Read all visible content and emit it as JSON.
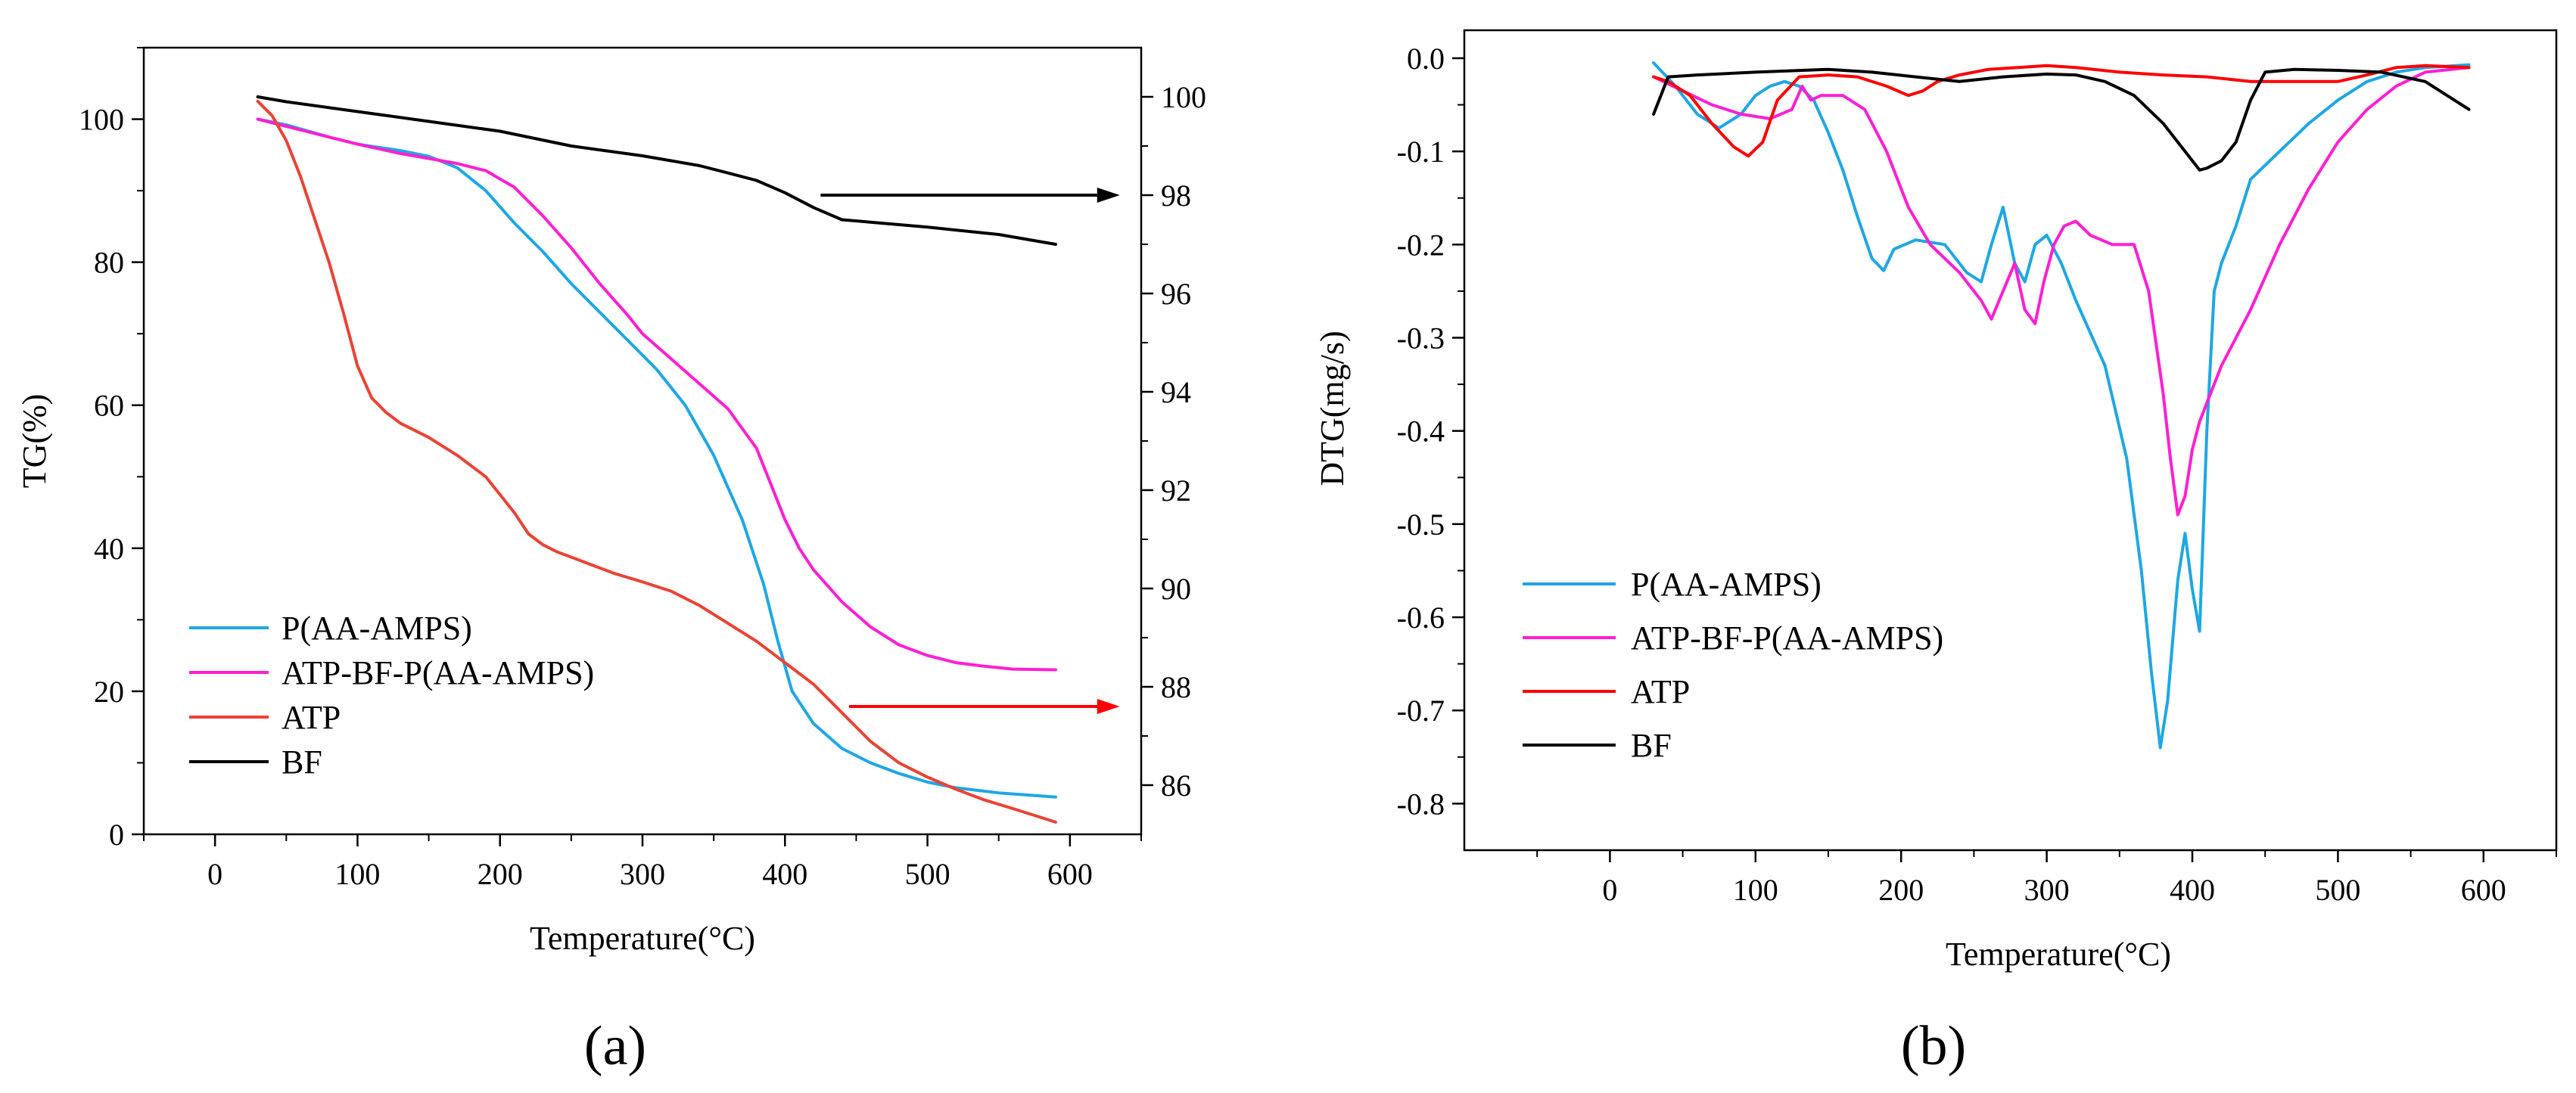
{
  "chart_data": [
    {
      "type": "line",
      "panel_label": "(a)",
      "xlabel": "Temperature(°C)",
      "ylabel": "TG(%)",
      "y2label": "",
      "xlim": [
        -50,
        650
      ],
      "ylim": [
        0,
        110
      ],
      "y2lim": [
        85,
        101
      ],
      "xticks": [
        0,
        100,
        200,
        300,
        400,
        500,
        600
      ],
      "yticks": [
        0,
        20,
        40,
        60,
        80,
        100
      ],
      "y2ticks": [
        86,
        88,
        90,
        92,
        94,
        96,
        98,
        100
      ],
      "legend_position": "lower-left",
      "series": [
        {
          "name": "P(AA-AMPS)",
          "color": "#1ea7e4",
          "axis": "left",
          "x": [
            30,
            50,
            80,
            100,
            130,
            150,
            170,
            190,
            210,
            230,
            250,
            270,
            290,
            310,
            330,
            350,
            370,
            385,
            395,
            405,
            420,
            440,
            460,
            480,
            500,
            520,
            550,
            590
          ],
          "y": [
            100,
            99.2,
            97.5,
            96.5,
            95.6,
            94.8,
            93.2,
            90,
            85.5,
            81.5,
            77,
            73,
            69,
            65,
            60,
            53,
            44,
            35,
            27,
            20,
            15.5,
            12,
            10,
            8.5,
            7.3,
            6.5,
            5.8,
            5.2
          ]
        },
        {
          "name": "ATP-BF-P(AA-AMPS)",
          "color": "#ff1fd2",
          "axis": "left",
          "x": [
            30,
            50,
            80,
            100,
            130,
            150,
            170,
            190,
            210,
            230,
            250,
            270,
            290,
            300,
            320,
            340,
            360,
            380,
            390,
            400,
            410,
            420,
            440,
            460,
            480,
            500,
            520,
            540,
            560,
            590
          ],
          "y": [
            100,
            99,
            97.5,
            96.5,
            95.2,
            94.5,
            93.8,
            92.8,
            90.5,
            86.5,
            82,
            77,
            72.5,
            70,
            66.5,
            63,
            59.5,
            54,
            49,
            44,
            40,
            37,
            32.5,
            29,
            26.5,
            25,
            24,
            23.5,
            23.1,
            23
          ]
        },
        {
          "name": "ATP",
          "color": "#ea4335",
          "axis": "left",
          "x": [
            30,
            40,
            50,
            60,
            70,
            80,
            90,
            100,
            110,
            120,
            130,
            150,
            170,
            190,
            200,
            210,
            220,
            230,
            240,
            260,
            280,
            300,
            320,
            340,
            360,
            380,
            400,
            420,
            440,
            460,
            480,
            500,
            520,
            540,
            560,
            590
          ],
          "y": [
            102.5,
            100.5,
            97,
            92,
            86,
            80,
            73,
            65.5,
            61,
            59,
            57.5,
            55.5,
            53,
            50,
            47.5,
            45,
            42,
            40.5,
            39.5,
            38,
            36.5,
            35.3,
            34,
            32,
            29.5,
            27,
            24,
            21,
            17,
            13,
            10,
            8,
            6.3,
            4.8,
            3.6,
            1.7
          ]
        },
        {
          "name": "BF",
          "color": "#000000",
          "axis": "right",
          "x": [
            30,
            50,
            100,
            150,
            200,
            250,
            300,
            340,
            360,
            380,
            400,
            420,
            440,
            460,
            500,
            550,
            590
          ],
          "y": [
            100,
            99.9,
            99.7,
            99.5,
            99.3,
            99.0,
            98.8,
            98.6,
            98.45,
            98.3,
            98.05,
            97.75,
            97.5,
            97.45,
            97.35,
            97.2,
            97.0
          ]
        }
      ],
      "annotations": [
        {
          "type": "arrow",
          "color": "#000000",
          "x_from": 425,
          "x_to": 635,
          "y": 98,
          "axis": "right",
          "direction": "right"
        },
        {
          "type": "arrow",
          "color": "#ff0000",
          "x_from": 445,
          "x_to": 635,
          "y": 87.6,
          "axis": "right",
          "direction": "right"
        }
      ]
    },
    {
      "type": "line",
      "panel_label": "(b)",
      "xlabel": "Temperature(°C)",
      "ylabel": "DTG(mg/s)",
      "xlim": [
        -100,
        650
      ],
      "ylim": [
        -0.85,
        0.03
      ],
      "xticks": [
        0,
        100,
        200,
        300,
        400,
        500,
        600
      ],
      "yticks": [
        0.0,
        -0.1,
        -0.2,
        -0.3,
        -0.4,
        -0.5,
        -0.6,
        -0.7,
        -0.8
      ],
      "ytick_labels": [
        "0.0",
        "-0.1",
        "-0.2",
        "-0.3",
        "-0.4",
        "-0.5",
        "-0.6",
        "-0.7",
        "-0.8"
      ],
      "legend_position": "lower-left",
      "series": [
        {
          "name": "P(AA-AMPS)",
          "color": "#1ea7e4",
          "x": [
            30,
            45,
            60,
            75,
            90,
            100,
            110,
            120,
            130,
            140,
            150,
            160,
            170,
            180,
            188,
            195,
            210,
            230,
            245,
            255,
            262,
            270,
            278,
            285,
            292,
            300,
            310,
            320,
            340,
            355,
            365,
            372,
            378,
            383,
            390,
            395,
            400,
            405,
            410,
            415,
            420,
            430,
            440,
            460,
            480,
            500,
            520,
            540,
            560,
            590
          ],
          "y": [
            -0.005,
            -0.03,
            -0.06,
            -0.075,
            -0.06,
            -0.04,
            -0.03,
            -0.025,
            -0.03,
            -0.045,
            -0.08,
            -0.12,
            -0.17,
            -0.215,
            -0.228,
            -0.205,
            -0.195,
            -0.2,
            -0.23,
            -0.24,
            -0.2,
            -0.16,
            -0.22,
            -0.24,
            -0.2,
            -0.19,
            -0.22,
            -0.26,
            -0.33,
            -0.43,
            -0.55,
            -0.66,
            -0.74,
            -0.69,
            -0.56,
            -0.51,
            -0.57,
            -0.615,
            -0.4,
            -0.25,
            -0.22,
            -0.18,
            -0.13,
            -0.1,
            -0.07,
            -0.045,
            -0.025,
            -0.015,
            -0.01,
            -0.007
          ]
        },
        {
          "name": "ATP-BF-P(AA-AMPS)",
          "color": "#ff1fd2",
          "x": [
            30,
            50,
            70,
            90,
            110,
            125,
            132,
            138,
            145,
            160,
            175,
            190,
            205,
            220,
            240,
            255,
            262,
            270,
            278,
            285,
            292,
            298,
            305,
            312,
            320,
            330,
            345,
            360,
            370,
            380,
            385,
            390,
            395,
            400,
            405,
            410,
            420,
            440,
            460,
            480,
            500,
            520,
            540,
            560,
            590
          ],
          "y": [
            -0.02,
            -0.035,
            -0.05,
            -0.06,
            -0.065,
            -0.055,
            -0.03,
            -0.045,
            -0.04,
            -0.04,
            -0.055,
            -0.1,
            -0.16,
            -0.2,
            -0.23,
            -0.26,
            -0.28,
            -0.25,
            -0.22,
            -0.27,
            -0.285,
            -0.24,
            -0.2,
            -0.18,
            -0.175,
            -0.19,
            -0.2,
            -0.2,
            -0.25,
            -0.36,
            -0.43,
            -0.49,
            -0.47,
            -0.42,
            -0.39,
            -0.37,
            -0.33,
            -0.27,
            -0.2,
            -0.14,
            -0.09,
            -0.055,
            -0.03,
            -0.015,
            -0.01
          ]
        },
        {
          "name": "ATP",
          "color": "#ff0000",
          "x": [
            30,
            40,
            55,
            70,
            85,
            95,
            105,
            115,
            130,
            150,
            170,
            190,
            205,
            215,
            225,
            240,
            260,
            280,
            300,
            320,
            350,
            380,
            410,
            440,
            470,
            500,
            520,
            540,
            560,
            590
          ],
          "y": [
            -0.02,
            -0.025,
            -0.04,
            -0.07,
            -0.095,
            -0.105,
            -0.09,
            -0.045,
            -0.02,
            -0.018,
            -0.02,
            -0.03,
            -0.04,
            -0.035,
            -0.025,
            -0.018,
            -0.012,
            -0.01,
            -0.008,
            -0.01,
            -0.015,
            -0.018,
            -0.02,
            -0.025,
            -0.025,
            -0.025,
            -0.018,
            -0.01,
            -0.008,
            -0.01
          ]
        },
        {
          "name": "BF",
          "color": "#000000",
          "x": [
            30,
            40,
            60,
            100,
            150,
            180,
            210,
            240,
            270,
            300,
            320,
            340,
            360,
            380,
            395,
            405,
            410,
            420,
            430,
            440,
            450,
            470,
            500,
            530,
            560,
            590
          ],
          "y": [
            -0.06,
            -0.02,
            -0.018,
            -0.015,
            -0.012,
            -0.015,
            -0.02,
            -0.025,
            -0.02,
            -0.017,
            -0.018,
            -0.025,
            -0.04,
            -0.07,
            -0.1,
            -0.12,
            -0.118,
            -0.11,
            -0.09,
            -0.045,
            -0.015,
            -0.012,
            -0.013,
            -0.015,
            -0.025,
            -0.055
          ]
        }
      ]
    }
  ]
}
